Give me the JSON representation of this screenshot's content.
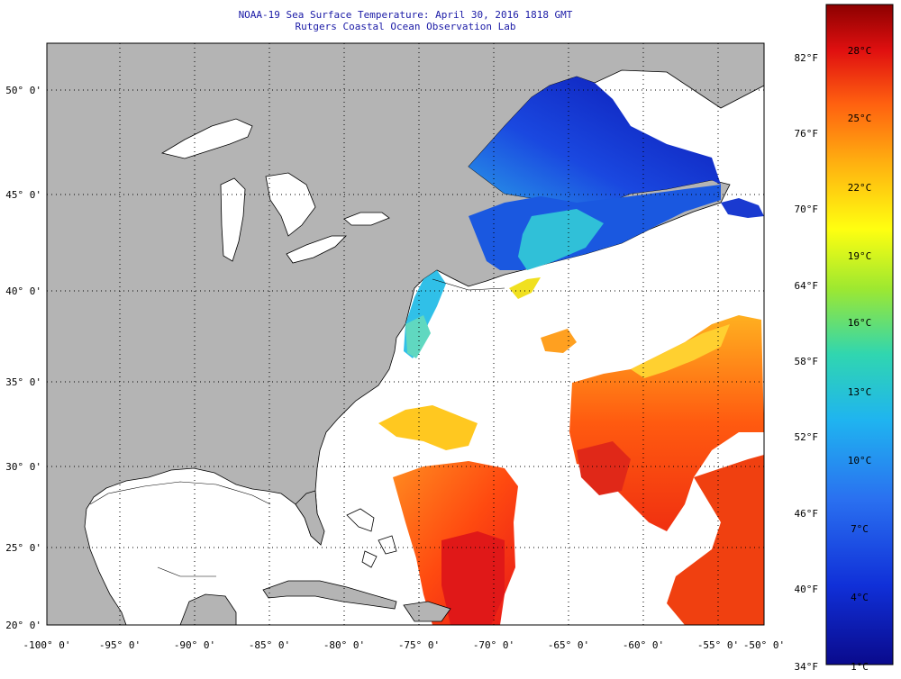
{
  "title": {
    "line1": "NOAA-19 Sea Surface Temperature:  April 30, 2016 1818 GMT",
    "line2": "Rutgers Coastal Ocean Observation Lab"
  },
  "latitude_labels": [
    "50° 0'",
    "45° 0'",
    "40° 0'",
    "35° 0'",
    "30° 0'",
    "25° 0'",
    "20° 0'"
  ],
  "longitude_labels": [
    "-100° 0'",
    "-95° 0'",
    "-90° 0'",
    "-85° 0'",
    "-80° 0'",
    "-75° 0'",
    "-70° 0'",
    "-65° 0'",
    "-60° 0'",
    "-55° 0'",
    "-50° 0'"
  ],
  "colorbar": {
    "fahrenheit_labels": [
      "82°F",
      "76°F",
      "70°F",
      "64°F",
      "58°F",
      "52°F",
      "46°F",
      "40°F",
      "34°F"
    ],
    "celsius_labels": [
      "28°C",
      "25°C",
      "22°C",
      "19°C",
      "16°C",
      "13°C",
      "10°C",
      "7°C",
      "4°C",
      "1°C"
    ]
  },
  "colors": {
    "land": "#b4b4b4",
    "ocean": "#ffffff",
    "title": "#1a1aa6"
  }
}
